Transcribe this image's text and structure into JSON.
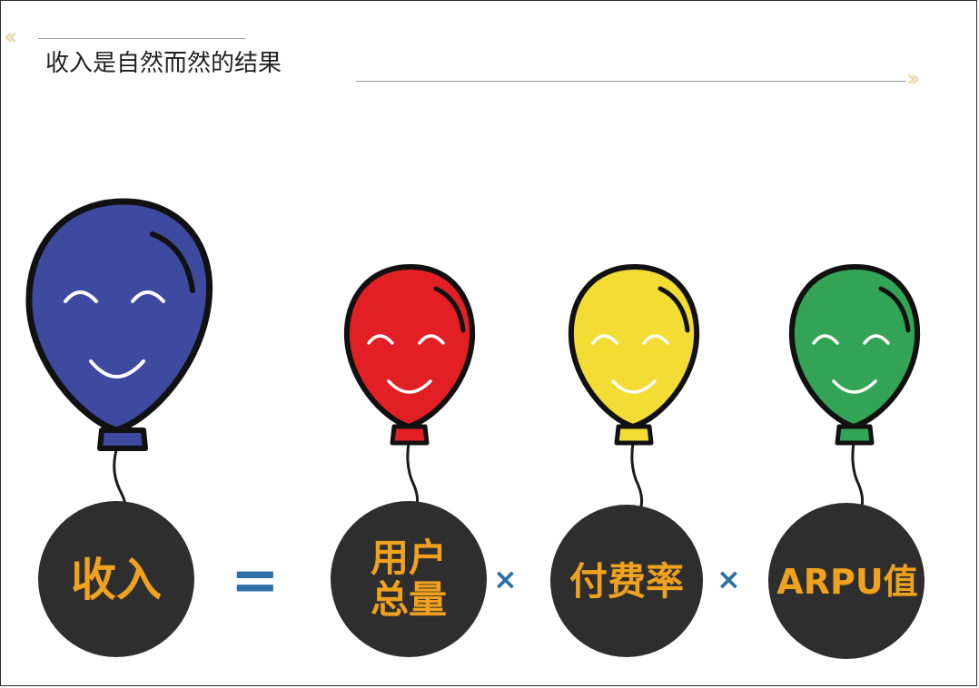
{
  "title": "收入是自然而然的结果",
  "decor": {
    "left_chevron": "‹‹",
    "right_chevron": "››",
    "chevron_color": "#e9d9a6"
  },
  "formula": {
    "result": {
      "label": "收入",
      "balloon_color": "#3d4aa0"
    },
    "equals": "=",
    "terms": [
      {
        "label_line1": "用户",
        "label_line2": "总量",
        "balloon_color": "#e31f26"
      },
      {
        "label": "付费率",
        "balloon_color": "#f3dc33"
      },
      {
        "label": "ARPU值",
        "balloon_color": "#33a455"
      }
    ],
    "times": "×"
  },
  "colors": {
    "label_text": "#f0a21e",
    "circle_fill": "#2e2e2e",
    "operator": "#2f6fa7"
  }
}
